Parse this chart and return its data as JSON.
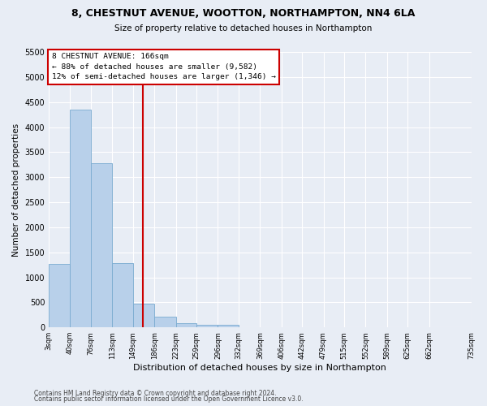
{
  "title": "8, CHESTNUT AVENUE, WOOTTON, NORTHAMPTON, NN4 6LA",
  "subtitle": "Size of property relative to detached houses in Northampton",
  "xlabel": "Distribution of detached houses by size in Northampton",
  "ylabel": "Number of detached properties",
  "footnote1": "Contains HM Land Registry data © Crown copyright and database right 2024.",
  "footnote2": "Contains public sector information licensed under the Open Government Licence v3.0.",
  "bar_values": [
    1270,
    4350,
    3280,
    1280,
    480,
    210,
    90,
    60,
    60,
    0,
    0,
    0,
    0,
    0,
    0,
    0,
    0,
    0,
    0
  ],
  "bin_edges": [
    3,
    40,
    76,
    113,
    149,
    186,
    223,
    259,
    296,
    332,
    369,
    406,
    442,
    479,
    515,
    552,
    589,
    625,
    662,
    735
  ],
  "bar_color": "#b8d0ea",
  "bar_edge_color": "#7aabd0",
  "property_line_x": 166,
  "property_line_color": "#cc0000",
  "annotation_text": "8 CHESTNUT AVENUE: 166sqm\n← 88% of detached houses are smaller (9,582)\n12% of semi-detached houses are larger (1,346) →",
  "annotation_box_edgecolor": "#cc0000",
  "ylim": [
    0,
    5500
  ],
  "yticks": [
    0,
    500,
    1000,
    1500,
    2000,
    2500,
    3000,
    3500,
    4000,
    4500,
    5000,
    5500
  ],
  "bg_color": "#e8edf5",
  "plot_bg_color": "#e8edf5",
  "grid_color": "#ffffff",
  "tick_labels": [
    "3sqm",
    "40sqm",
    "76sqm",
    "113sqm",
    "149sqm",
    "186sqm",
    "223sqm",
    "259sqm",
    "296sqm",
    "332sqm",
    "369sqm",
    "406sqm",
    "442sqm",
    "479sqm",
    "515sqm",
    "552sqm",
    "589sqm",
    "625sqm",
    "662sqm",
    "735sqm"
  ],
  "figsize": [
    6.0,
    5.0
  ],
  "dpi": 100
}
